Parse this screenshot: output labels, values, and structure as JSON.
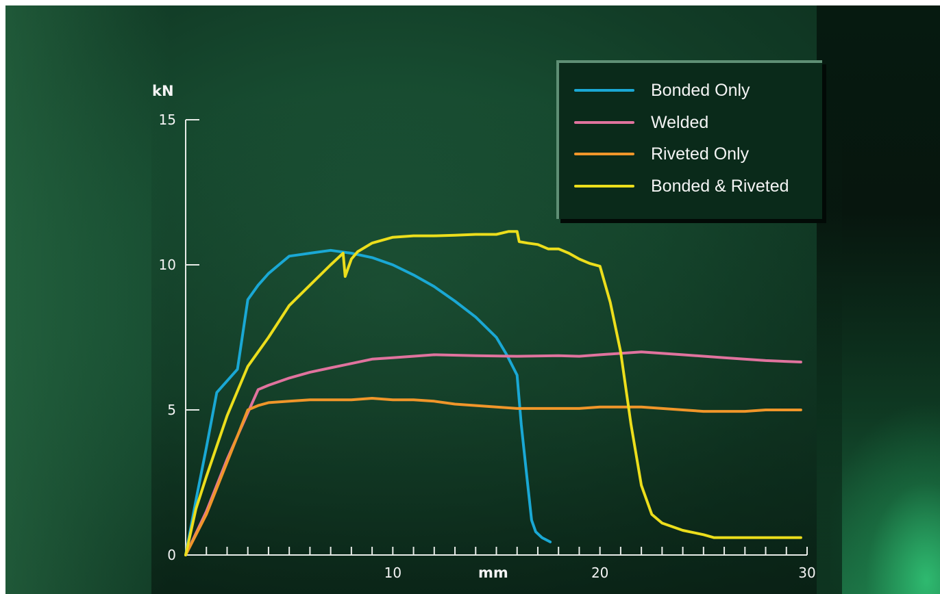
{
  "colors": {
    "bonded_only": "#1aa8d4",
    "welded": "#e0739e",
    "riveted_only": "#f0962a",
    "bonded_riveted": "#ecde1c",
    "axis": "#e8ece8"
  },
  "legend": {
    "items": [
      {
        "label": "Bonded Only",
        "color": "#1aa8d4"
      },
      {
        "label": "Welded",
        "color": "#e0739e"
      },
      {
        "label": "Riveted Only",
        "color": "#f0962a"
      },
      {
        "label": "Bonded & Riveted",
        "color": "#ecde1c"
      }
    ]
  },
  "chart_data": {
    "type": "line",
    "title": "",
    "xlabel": "mm",
    "ylabel": "kN",
    "xlim": [
      0,
      30
    ],
    "ylim": [
      0,
      15
    ],
    "x_ticks": [
      10,
      20,
      30
    ],
    "x_tick_labels": [
      "10",
      "20",
      "30"
    ],
    "y_ticks": [
      0,
      5,
      10,
      15
    ],
    "y_tick_labels": [
      "0",
      "5",
      "10",
      "15"
    ],
    "x_minor_step": 1,
    "legend_position": "top-right",
    "grid": false,
    "series": [
      {
        "name": "Bonded Only",
        "color": "#1aa8d4",
        "x": [
          0,
          0.5,
          1,
          1.5,
          2,
          2.5,
          3,
          3.5,
          4,
          4.5,
          5,
          5.5,
          6,
          7,
          8,
          9,
          10,
          11,
          12,
          13,
          14,
          15,
          15.5,
          16,
          16.2,
          16.5,
          16.7,
          16.9,
          17.2,
          17.6
        ],
        "y": [
          0,
          1.9,
          3.7,
          5.6,
          6.0,
          6.4,
          8.8,
          9.3,
          9.7,
          10.0,
          10.3,
          10.35,
          10.4,
          10.5,
          10.4,
          10.25,
          10.0,
          9.65,
          9.25,
          8.75,
          8.2,
          7.5,
          6.9,
          6.2,
          4.5,
          2.5,
          1.2,
          0.8,
          0.6,
          0.45
        ]
      },
      {
        "name": "Welded",
        "color": "#e0739e",
        "x": [
          0,
          1,
          2,
          3,
          3.5,
          4,
          5,
          6,
          7,
          8,
          9,
          10,
          12,
          14,
          16,
          18,
          19,
          20,
          22,
          24,
          26,
          28,
          29.7
        ],
        "y": [
          0,
          1.5,
          3.3,
          4.9,
          5.7,
          5.85,
          6.1,
          6.3,
          6.45,
          6.6,
          6.75,
          6.8,
          6.9,
          6.87,
          6.85,
          6.87,
          6.85,
          6.9,
          7.0,
          6.9,
          6.8,
          6.7,
          6.65
        ]
      },
      {
        "name": "Riveted Only",
        "color": "#f0962a",
        "x": [
          0,
          1,
          2,
          3,
          3.5,
          4,
          5,
          6,
          7,
          8,
          9,
          10,
          11,
          12,
          13,
          14,
          15,
          16,
          17,
          18,
          19,
          20,
          21,
          22,
          23,
          24,
          25,
          26,
          27,
          28,
          29.7
        ],
        "y": [
          0,
          1.4,
          3.2,
          5.0,
          5.15,
          5.25,
          5.3,
          5.35,
          5.35,
          5.35,
          5.4,
          5.35,
          5.35,
          5.3,
          5.2,
          5.15,
          5.1,
          5.05,
          5.05,
          5.05,
          5.05,
          5.1,
          5.1,
          5.1,
          5.05,
          5.0,
          4.95,
          4.95,
          4.95,
          5.0,
          5.0
        ]
      },
      {
        "name": "Bonded & Riveted",
        "color": "#ecde1c",
        "x": [
          0,
          0.5,
          1,
          2,
          3,
          4,
          5,
          6,
          7,
          7.6,
          7.7,
          7.85,
          8,
          8.3,
          9,
          10,
          11,
          12,
          13,
          14,
          15,
          15.6,
          16,
          16.1,
          16.5,
          17,
          17.5,
          18,
          18.5,
          19,
          19.5,
          20,
          20.5,
          21,
          21.5,
          22,
          22.5,
          23,
          24,
          25,
          25.5,
          26,
          28,
          29.7
        ],
        "y": [
          0,
          1.6,
          2.7,
          4.8,
          6.5,
          7.5,
          8.6,
          9.3,
          10.0,
          10.4,
          9.6,
          9.9,
          10.2,
          10.45,
          10.75,
          10.95,
          11.0,
          11.0,
          11.02,
          11.05,
          11.05,
          11.15,
          11.15,
          10.8,
          10.75,
          10.7,
          10.55,
          10.55,
          10.4,
          10.2,
          10.05,
          9.95,
          8.7,
          7.0,
          4.5,
          2.4,
          1.4,
          1.1,
          0.85,
          0.7,
          0.6,
          0.6,
          0.6,
          0.6
        ]
      }
    ]
  }
}
